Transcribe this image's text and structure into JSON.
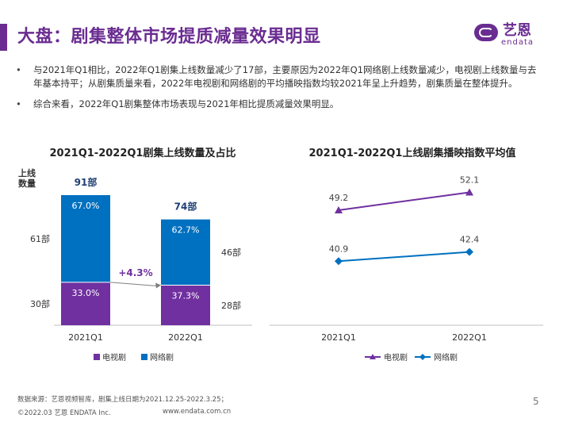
{
  "header": {
    "title": "大盘：剧集整体市场提质减量效果明显"
  },
  "logo": {
    "cn": "艺恩",
    "en": "endata"
  },
  "bullets": [
    "与2021年Q1相比，2022年Q1剧集上线数量减少了17部，主要原因为2022年Q1网络剧上线数量减少，电视剧上线数量与去年基本持平；从剧集质量来看，2022年电视剧和网络剧的平均播映指数均较2021年呈上升趋势，剧集质量在整体提升。",
    "综合来看，2022年Q1剧集整体市场表现与2021年相比提质减量效果明显。"
  ],
  "bullet_symbol": "•",
  "colors": {
    "purple": "#7030a0",
    "blue": "#0070c0",
    "title": "#6a2c91"
  },
  "chart_data": [
    {
      "type": "bar",
      "title": "2021Q1-2022Q1剧集上线数量及占比",
      "ylabel": "上线\n数量",
      "categories": [
        "2021Q1",
        "2022Q1"
      ],
      "totals": [
        91,
        74
      ],
      "totals_labels": [
        "91部",
        "74部"
      ],
      "series": [
        {
          "name": "电视剧",
          "values": [
            30,
            28
          ],
          "labels": [
            "33.0%",
            "37.3%"
          ],
          "count_labels": [
            "30部",
            "28部"
          ],
          "color": "#7030a0"
        },
        {
          "name": "网络剧",
          "values": [
            61,
            46
          ],
          "labels": [
            "67.0%",
            "62.7%"
          ],
          "count_labels": [
            "61部",
            "46部"
          ],
          "color": "#0070c0"
        }
      ],
      "annotation": "+4.3%",
      "legend_position": "bottom"
    },
    {
      "type": "line",
      "title": "2021Q1-2022Q1上线剧集播映指数平均值",
      "categories": [
        "2021Q1",
        "2022Q1"
      ],
      "series": [
        {
          "name": "电视剧",
          "values": [
            49.2,
            52.1
          ],
          "color": "#7030a0",
          "marker": "triangle"
        },
        {
          "name": "网络剧",
          "values": [
            40.9,
            42.4
          ],
          "color": "#0070c0",
          "marker": "diamond"
        }
      ],
      "ylim": [
        35,
        55
      ],
      "legend_position": "bottom"
    }
  ],
  "footer": {
    "source": "数据来源：艺恩视频智库，剧集上线日期为2021.12.25-2022.3.25；",
    "copyright": "©2022.03 艺恩 ENDATA Inc.",
    "url": "www.endata.com.cn",
    "page": "5"
  }
}
